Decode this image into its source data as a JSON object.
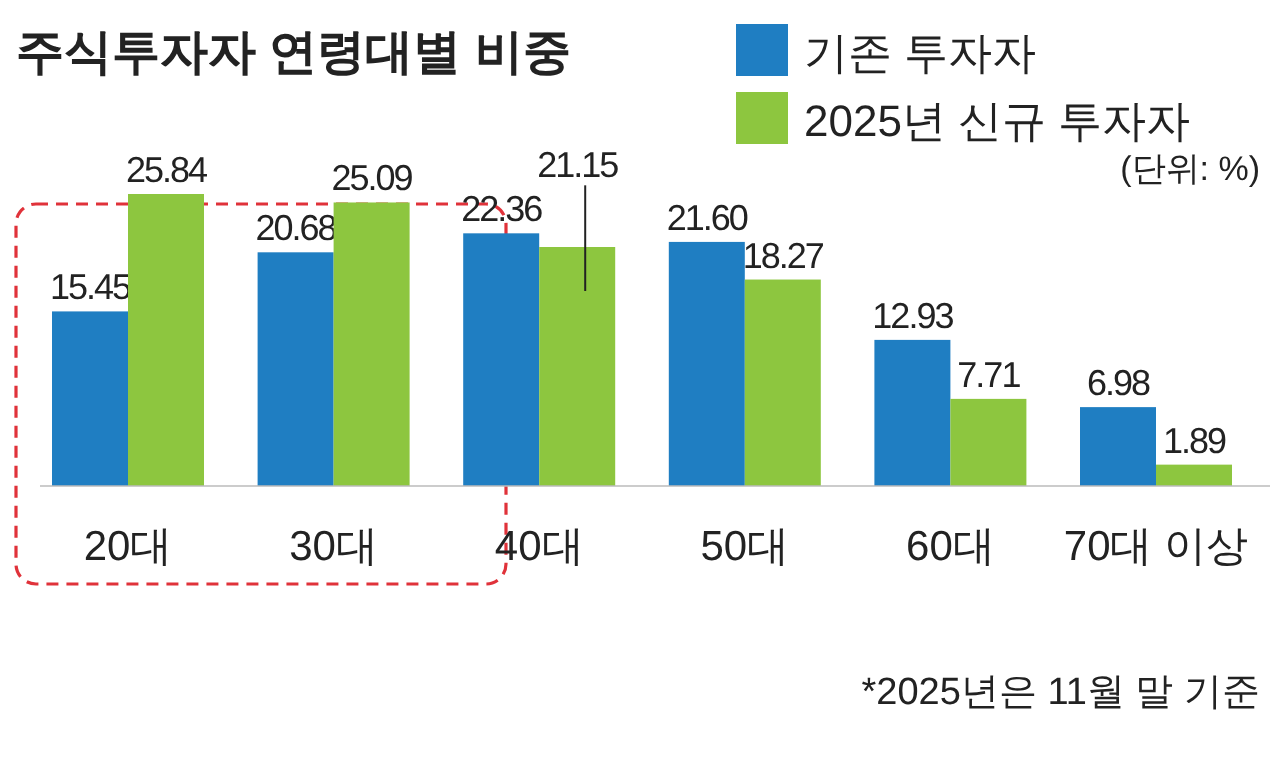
{
  "chart_data": {
    "type": "bar",
    "title": "주식투자자 연령대별 비중",
    "categories": [
      "20대",
      "30대",
      "40대",
      "50대",
      "60대",
      "70대 이상"
    ],
    "series": [
      {
        "name": "기존 투자자",
        "color": "#1f7ec2",
        "values": [
          15.45,
          20.68,
          22.36,
          21.6,
          12.93,
          6.98
        ],
        "value_labels": [
          "15.45",
          "20.68",
          "22.36",
          "21.60",
          "12.93",
          "6.98"
        ]
      },
      {
        "name": "2025년 신규 투자자",
        "color": "#8dc63f",
        "values": [
          25.84,
          25.09,
          21.15,
          18.27,
          7.71,
          1.89
        ],
        "value_labels": [
          "25.84",
          "25.09",
          "21.15",
          "18.27",
          "7.71",
          "1.89"
        ]
      }
    ],
    "legend": "top right",
    "annotations": [
      "(단위: %)",
      "*2025년은 11월 말 기준"
    ]
  }
}
